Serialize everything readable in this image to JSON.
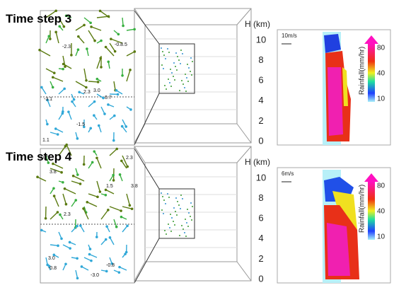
{
  "panels": [
    {
      "title": "Time step 3",
      "height_axis": {
        "label": "H (km)",
        "ticks": [
          10,
          8,
          6,
          4,
          2,
          0
        ]
      },
      "wind_scale": "10m/s",
      "colorbar": {
        "label": "Rainfall(mm/hr)",
        "ticks": [
          80,
          40,
          10
        ]
      },
      "vector_labels": [
        "-2.3",
        "-0.8.5",
        "2.3",
        "3.0",
        "-3.1",
        "0.7",
        "-1.5",
        "1.1"
      ]
    },
    {
      "title": "Time step 4",
      "height_axis": {
        "label": "H (km)",
        "ticks": [
          10,
          8,
          6,
          4,
          2,
          0
        ]
      },
      "wind_scale": "6m/s",
      "colorbar": {
        "label": "Rainfall(mm/hr)",
        "ticks": [
          80,
          40,
          10
        ]
      },
      "vector_labels": [
        "0.7",
        "2.3",
        "3.8",
        "1.5",
        "3.8",
        "2.3",
        "3.0",
        "-0.8",
        "-0.8",
        "-3.0"
      ]
    }
  ]
}
